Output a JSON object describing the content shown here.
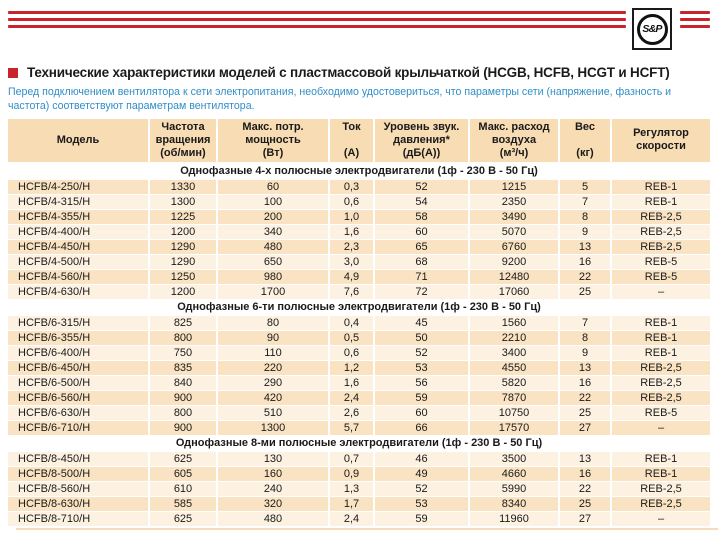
{
  "logo": {
    "text": "S&P"
  },
  "title": {
    "text": "Технические характеристики моделей с пластмассовой крыльчаткой (HCGB, HCFB, HCGT и HCFT)"
  },
  "note": "Перед подключением вентилятора к сети электропитания, необходимо удостовериться, что параметры сети (напряжение, фазность и частота) соответствуют параметрам вентилятора.",
  "colors": {
    "accent_red": "#c8242b",
    "note_blue": "#2f8ec8",
    "header_bg": "#f7dcb4",
    "row_peach": "#fae3c2",
    "row_pale": "#fdf2e1"
  },
  "table": {
    "headers": [
      [
        "Модель"
      ],
      [
        "Частота",
        "вращения",
        "(об/мин)"
      ],
      [
        "Макс. потр.",
        "мощность",
        "(Вт)"
      ],
      [
        "Ток",
        "",
        "(А)"
      ],
      [
        "Уровень звук.",
        "давления*",
        "(дБ(А))"
      ],
      [
        "Макс. расход",
        "воздуха",
        "(м³/ч)"
      ],
      [
        "Вес",
        "",
        "(кг)"
      ],
      [
        "Регулятор",
        "скорости"
      ]
    ],
    "sections": [
      {
        "title": "Однофазные 4-х полюсные электродвигатели (1ф - 230 В - 50 Гц)",
        "rows": [
          {
            "shade": "peach",
            "cells": [
              "HCFB/4-250/H",
              "1330",
              "60",
              "0,3",
              "52",
              "1215",
              "5",
              "REB-1"
            ]
          },
          {
            "shade": "pale",
            "cells": [
              "HCFB/4-315/H",
              "1300",
              "100",
              "0,6",
              "54",
              "2350",
              "7",
              "REB-1"
            ]
          },
          {
            "shade": "peach",
            "cells": [
              "HCFB/4-355/H",
              "1225",
              "200",
              "1,0",
              "58",
              "3490",
              "8",
              "REB-2,5"
            ]
          },
          {
            "shade": "pale",
            "cells": [
              "HCFB/4-400/H",
              "1200",
              "340",
              "1,6",
              "60",
              "5070",
              "9",
              "REB-2,5"
            ]
          },
          {
            "shade": "peach",
            "cells": [
              "HCFB/4-450/H",
              "1290",
              "480",
              "2,3",
              "65",
              "6760",
              "13",
              "REB-2,5"
            ]
          },
          {
            "shade": "pale",
            "cells": [
              "HCFB/4-500/H",
              "1290",
              "650",
              "3,0",
              "68",
              "9200",
              "16",
              "REB-5"
            ]
          },
          {
            "shade": "peach",
            "cells": [
              "HCFB/4-560/H",
              "1250",
              "980",
              "4,9",
              "71",
              "12480",
              "22",
              "REB-5"
            ]
          },
          {
            "shade": "pale",
            "cells": [
              "HCFB/4-630/H",
              "1200",
              "1700",
              "7,6",
              "72",
              "17060",
              "25",
              "–"
            ]
          }
        ]
      },
      {
        "title": "Однофазные 6-ти полюсные электродвигатели (1ф - 230 В - 50 Гц)",
        "rows": [
          {
            "shade": "pale",
            "cells": [
              "HCFB/6-315/H",
              "825",
              "80",
              "0,4",
              "45",
              "1560",
              "7",
              "REB-1"
            ]
          },
          {
            "shade": "peach",
            "cells": [
              "HCFB/6-355/H",
              "800",
              "90",
              "0,5",
              "50",
              "2210",
              "8",
              "REB-1"
            ]
          },
          {
            "shade": "pale",
            "cells": [
              "HCFB/6-400/H",
              "750",
              "110",
              "0,6",
              "52",
              "3400",
              "9",
              "REB-1"
            ]
          },
          {
            "shade": "peach",
            "cells": [
              "HCFB/6-450/H",
              "835",
              "220",
              "1,2",
              "53",
              "4550",
              "13",
              "REB-2,5"
            ]
          },
          {
            "shade": "pale",
            "cells": [
              "HCFB/6-500/H",
              "840",
              "290",
              "1,6",
              "56",
              "5820",
              "16",
              "REB-2,5"
            ]
          },
          {
            "shade": "peach",
            "cells": [
              "HCFB/6-560/H",
              "900",
              "420",
              "2,4",
              "59",
              "7870",
              "22",
              "REB-2,5"
            ]
          },
          {
            "shade": "pale",
            "cells": [
              "HCFB/6-630/H",
              "800",
              "510",
              "2,6",
              "60",
              "10750",
              "25",
              "REB-5"
            ]
          },
          {
            "shade": "peach",
            "cells": [
              "HCFB/6-710/H",
              "900",
              "1300",
              "5,7",
              "66",
              "17570",
              "27",
              "–"
            ]
          }
        ]
      },
      {
        "title": "Однофазные 8-ми полюсные электродвигатели (1ф - 230 В - 50 Гц)",
        "rows": [
          {
            "shade": "pale",
            "cells": [
              "HCFB/8-450/H",
              "625",
              "130",
              "0,7",
              "46",
              "3500",
              "13",
              "REB-1"
            ]
          },
          {
            "shade": "peach",
            "cells": [
              "HCFB/8-500/H",
              "605",
              "160",
              "0,9",
              "49",
              "4660",
              "16",
              "REB-1"
            ]
          },
          {
            "shade": "pale",
            "cells": [
              "HCFB/8-560/H",
              "610",
              "240",
              "1,3",
              "52",
              "5990",
              "22",
              "REB-2,5"
            ]
          },
          {
            "shade": "peach",
            "cells": [
              "HCFB/8-630/H",
              "585",
              "320",
              "1,7",
              "53",
              "8340",
              "25",
              "REB-2,5"
            ]
          },
          {
            "shade": "pale",
            "cells": [
              "HCFB/8-710/H",
              "625",
              "480",
              "2,4",
              "59",
              "11960",
              "27",
              "–"
            ]
          }
        ]
      }
    ]
  }
}
